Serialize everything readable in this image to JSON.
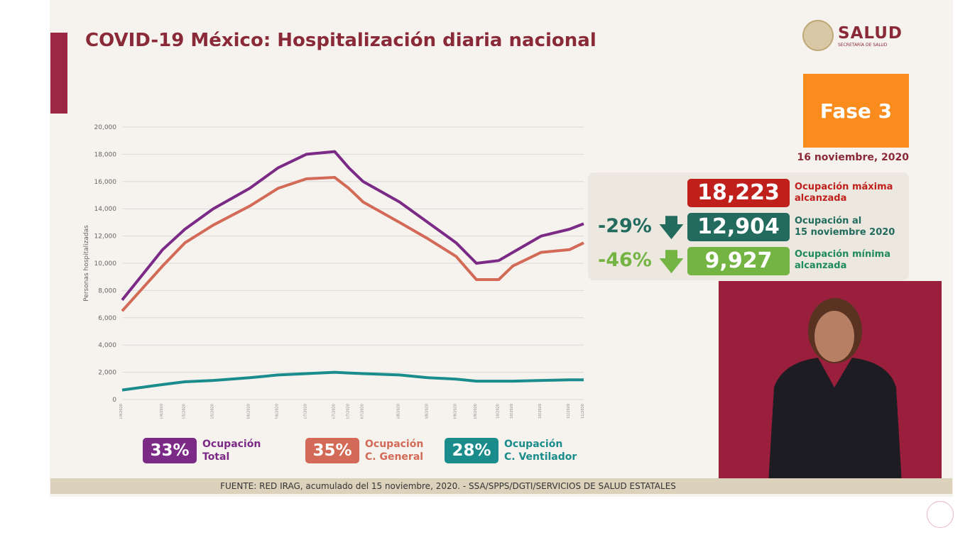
{
  "title": "COVID-19 México: Hospitalización diaria nacional",
  "logo": {
    "name": "SALUD",
    "sub": "SECRETARÍA DE SALUD"
  },
  "phase": "Fase 3",
  "date": "16 noviembre, 2020",
  "stats": {
    "max": {
      "value": "18,223",
      "label1": "Ocupación máxima",
      "label2": "alcanzada",
      "color": "#c0201c"
    },
    "current": {
      "pct": "-29%",
      "value": "12,904",
      "label1": "Ocupación al",
      "label2": "15 noviembre 2020",
      "color": "#246b5f"
    },
    "min": {
      "pct": "-46%",
      "value": "9,927",
      "label1": "Ocupación mínima",
      "label2": "alcanzada",
      "color": "#74b442"
    }
  },
  "legend": [
    {
      "pct": "33%",
      "l1": "Ocupación",
      "l2": "Total",
      "color": "#7b2a86"
    },
    {
      "pct": "35%",
      "l1": "Ocupación",
      "l2": "C. General",
      "color": "#d26a57"
    },
    {
      "pct": "28%",
      "l1": "Ocupación",
      "l2": "C. Ventilador",
      "color": "#1a8c8c"
    }
  ],
  "footer": "FUENTE: RED IRAG, acumulado del 15 noviembre, 2020. -  SSA/SPPS/DGTI/SERVICIOS DE SALUD ESTATALES",
  "chart_data": {
    "type": "line",
    "ylabel": "Personas hospitalizadas",
    "ylim": [
      0,
      20000
    ],
    "yticks": [
      0,
      2000,
      4000,
      6000,
      8000,
      10000,
      12000,
      14000,
      16000,
      18000,
      20000
    ],
    "grid": true,
    "x": [
      "2020-04-01",
      "2020-04-21",
      "2020-05-02",
      "2020-05-16",
      "2020-06-03",
      "2020-06-17",
      "2020-07-01",
      "2020-07-15",
      "2020-07-22",
      "2020-07-29",
      "2020-08-16",
      "2020-08-30",
      "2020-09-13",
      "2020-09-23",
      "2020-10-04",
      "2020-10-11",
      "2020-10-25",
      "2020-11-08",
      "2020-11-15"
    ],
    "series": [
      {
        "name": "Ocupación Total",
        "color": "#7b2a86",
        "values": [
          7300,
          11000,
          12500,
          14000,
          15500,
          17000,
          18000,
          18200,
          17000,
          16000,
          14500,
          13000,
          11500,
          10000,
          10200,
          10800,
          12000,
          12500,
          12900
        ]
      },
      {
        "name": "Ocupación C. General",
        "color": "#d26a57",
        "values": [
          6500,
          9800,
          11500,
          12800,
          14200,
          15500,
          16200,
          16300,
          15500,
          14500,
          13000,
          11800,
          10500,
          8800,
          8800,
          9800,
          10800,
          11000,
          11500
        ]
      },
      {
        "name": "Ocupación C. Ventilador",
        "color": "#1a8c8c",
        "values": [
          700,
          1100,
          1300,
          1400,
          1600,
          1800,
          1900,
          2000,
          1950,
          1900,
          1800,
          1600,
          1500,
          1350,
          1350,
          1350,
          1400,
          1450,
          1450
        ]
      }
    ]
  }
}
